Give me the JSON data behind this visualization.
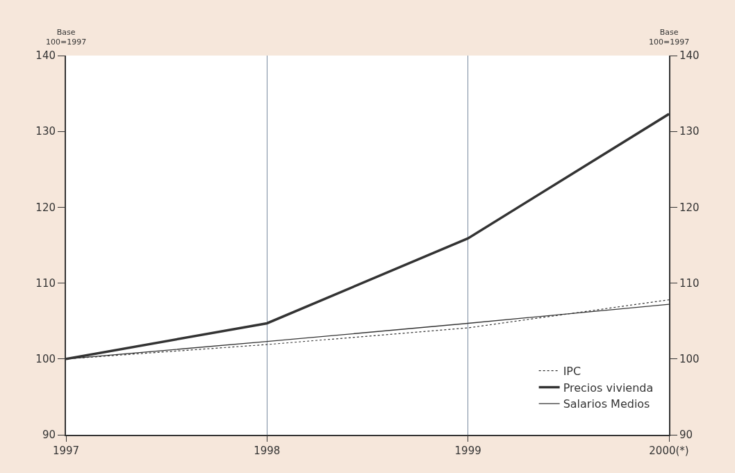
{
  "chart_data": {
    "type": "line",
    "categories": [
      "1997",
      "1998",
      "1999",
      "2000(*)"
    ],
    "series": [
      {
        "name": "IPC",
        "color": "#333333",
        "line_style": "dotted",
        "values": [
          100,
          101.9,
          104.1,
          107.8
        ]
      },
      {
        "name": "Precios vivienda",
        "color": "#333333",
        "line_style": "solid",
        "values": [
          100,
          104.7,
          115.9,
          132.3
        ]
      },
      {
        "name": "Salarios Medios",
        "color": "#333333",
        "line_style": "solid",
        "values": [
          100,
          102.3,
          104.7,
          107.2
        ]
      }
    ],
    "ylim": [
      90,
      140
    ],
    "yticks": [
      90,
      100,
      110,
      120,
      130,
      140
    ],
    "y2lim": [
      90,
      140
    ],
    "y2ticks": [
      90,
      100,
      110,
      120,
      130,
      140
    ],
    "annotations": [
      "Base\n100=1997",
      "Base\n100=1997"
    ],
    "grid": "x",
    "legend": "bottom right",
    "marker": "none"
  }
}
